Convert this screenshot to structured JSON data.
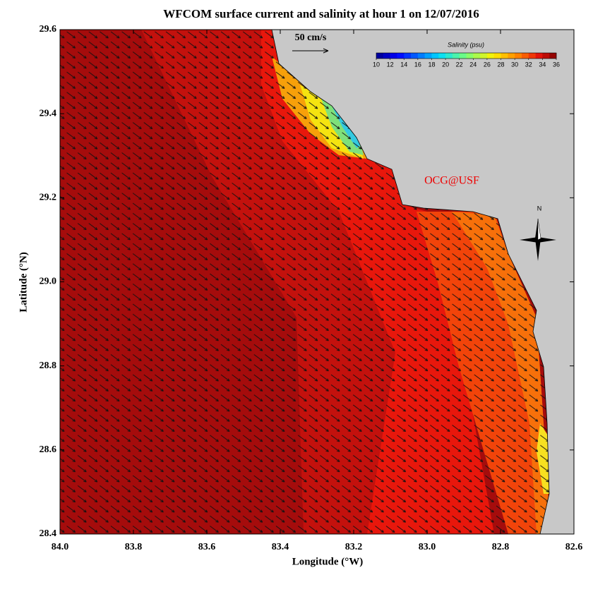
{
  "title": "WFCOM surface current and salinity at hour 1 on 12/07/2016",
  "x_axis": {
    "label": "Longitude (°W)",
    "lim": [
      84.0,
      82.6
    ],
    "ticks": [
      {
        "value": 84.0,
        "label": "84.0"
      },
      {
        "value": 83.8,
        "label": "83.8"
      },
      {
        "value": 83.6,
        "label": "83.6"
      },
      {
        "value": 83.4,
        "label": "83.4"
      },
      {
        "value": 83.2,
        "label": "83.2"
      },
      {
        "value": 83.0,
        "label": "83.0"
      },
      {
        "value": 82.8,
        "label": "82.8"
      },
      {
        "value": 82.6,
        "label": "82.6"
      }
    ]
  },
  "y_axis": {
    "label": "Latitude (°N)",
    "lim": [
      28.4,
      29.6
    ],
    "ticks": [
      {
        "value": 28.4,
        "label": "28.4"
      },
      {
        "value": 28.6,
        "label": "28.6"
      },
      {
        "value": 28.8,
        "label": "28.8"
      },
      {
        "value": 29.0,
        "label": "29.0"
      },
      {
        "value": 29.2,
        "label": "29.2"
      },
      {
        "value": 29.4,
        "label": "29.4"
      },
      {
        "value": 29.6,
        "label": "29.6"
      }
    ]
  },
  "colorbar": {
    "title": "Salinity (psu)",
    "lim": [
      10,
      36
    ],
    "ticks": [
      10,
      12,
      14,
      16,
      18,
      20,
      22,
      24,
      26,
      28,
      30,
      32,
      34,
      36
    ]
  },
  "scale_arrow": "50 cm/s",
  "credit": "OCG@USF",
  "north": "N"
}
